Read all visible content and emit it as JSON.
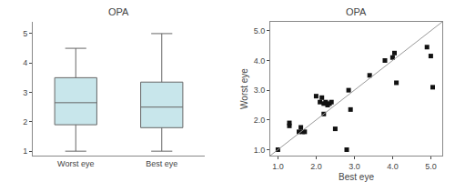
{
  "chart_data": [
    {
      "type": "box",
      "title": "OPA",
      "categories": [
        "Worst eye",
        "Best eye"
      ],
      "values": [
        {
          "median": 2.65,
          "q1": 1.9,
          "q3": 3.5,
          "whisker_low": 1.0,
          "whisker_high": 4.5
        },
        {
          "median": 2.5,
          "q1": 1.8,
          "q3": 3.35,
          "whisker_low": 1.0,
          "whisker_high": 5.0
        }
      ],
      "color": "#c8e6eb",
      "ylim": [
        0.85,
        5.4
      ],
      "yticks": [
        1,
        2,
        3,
        4,
        5
      ],
      "grid": false
    },
    {
      "type": "scatter",
      "title": "OPA",
      "xlabel": "Best eye",
      "ylabel": "Worst eye",
      "series": [
        {
          "type": "scatter",
          "marker": "square",
          "color": "#111111",
          "x": [
            1.0,
            1.3,
            1.3,
            1.55,
            1.6,
            1.65,
            1.7,
            2.0,
            2.1,
            2.15,
            2.2,
            2.2,
            2.25,
            2.3,
            2.35,
            2.4,
            2.5,
            2.8,
            2.85,
            2.9,
            3.4,
            3.8,
            4.0,
            4.05,
            4.1,
            4.9,
            5.0,
            5.05
          ],
          "values": [
            1.0,
            1.8,
            1.9,
            1.6,
            1.75,
            1.6,
            1.6,
            2.8,
            2.6,
            2.75,
            2.2,
            2.55,
            2.6,
            2.5,
            2.55,
            2.6,
            1.7,
            1.0,
            3.0,
            2.35,
            3.5,
            4.0,
            4.1,
            4.25,
            3.25,
            4.45,
            4.15,
            3.1
          ]
        },
        {
          "type": "line",
          "color": "#999999",
          "x": [
            0.8,
            5.3
          ],
          "values": [
            0.8,
            5.3
          ]
        }
      ],
      "xlim": [
        0.8,
        5.3
      ],
      "ylim": [
        0.8,
        5.3
      ],
      "xticks": [
        {
          "value": 1.0,
          "label": "1.0"
        },
        {
          "value": 2.0,
          "label": "2.0"
        },
        {
          "value": 3.0,
          "label": "3.0"
        },
        {
          "value": 4.0,
          "label": "4.0"
        },
        {
          "value": 5.0,
          "label": "5.0"
        }
      ],
      "yticks": [
        {
          "value": 1.0,
          "label": "1.0"
        },
        {
          "value": 2.0,
          "label": "2.0"
        },
        {
          "value": 3.0,
          "label": "3.0"
        },
        {
          "value": 4.0,
          "label": "4.0"
        },
        {
          "value": 5.0,
          "label": "5.0"
        }
      ],
      "grid": false
    }
  ]
}
